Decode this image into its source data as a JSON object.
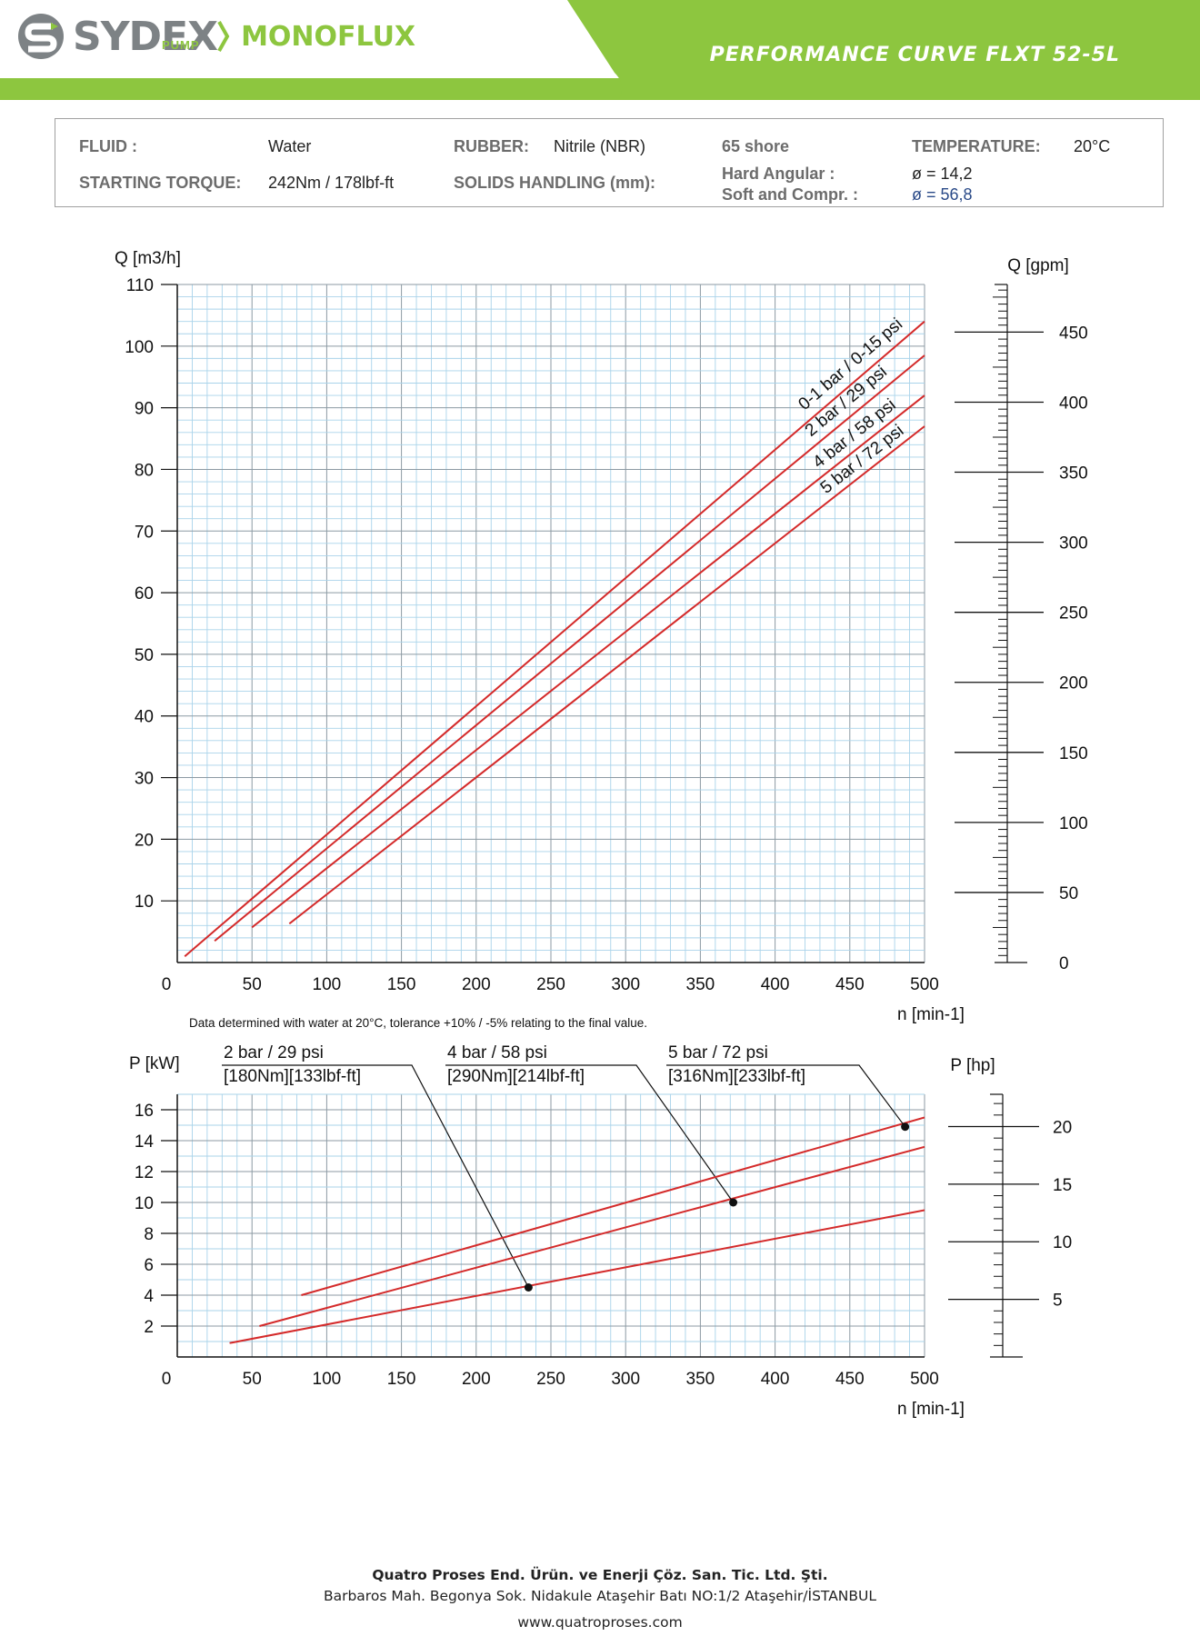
{
  "header": {
    "brand": "SYDEX",
    "brand_sub": "PUMP",
    "product_line": "MONOFLUX",
    "title": "PERFORMANCE CURVE FLXT  52-5L",
    "colors": {
      "green": "#8dc63f",
      "grey": "#7d8285"
    }
  },
  "specs": {
    "fluid_label": "FLUID :",
    "fluid_value": "Water",
    "rubber_label": "RUBBER:",
    "rubber_value": "Nitrile (NBR)",
    "shore": "65 shore",
    "temperature_label": "TEMPERATURE:",
    "temperature_value": "20°C",
    "torque_label": "STARTING TORQUE:",
    "torque_value": "242Nm / 178lbf-ft",
    "solids_label": "SOLIDS HANDLING (mm):",
    "hard_label": "Hard Angular :",
    "hard_value": "ø = 14,2",
    "soft_label": "Soft and Compr. :",
    "soft_value": "ø = 56,8"
  },
  "note": "Data determined with water at 20°C, tolerance +10% / -5% relating to the final value.",
  "chart_data": [
    {
      "type": "line",
      "ylabel": "Q [m3/h]",
      "xlabel": "n [min-1]",
      "secondary_ylabel": "Q [gpm]",
      "xlim": [
        0,
        500
      ],
      "ylim": [
        0,
        110
      ],
      "x_ticks": [
        "0",
        "50",
        "100",
        "150",
        "200",
        "250",
        "300",
        "350",
        "400",
        "450",
        "500"
      ],
      "y_ticks": [
        "10",
        "20",
        "30",
        "40",
        "50",
        "60",
        "70",
        "80",
        "90",
        "100",
        "110"
      ],
      "secondary_ticks": [
        "0",
        "50",
        "100",
        "150",
        "200",
        "250",
        "300",
        "350",
        "400",
        "450"
      ],
      "secondary_ylim": [
        0,
        484
      ],
      "grid": true,
      "line_color": "#d42a2a",
      "series": [
        {
          "name": "0-1 bar / 0-15 psi",
          "x": [
            5,
            500
          ],
          "y": [
            1,
            104
          ]
        },
        {
          "name": "2 bar / 29 psi",
          "x": [
            25,
            500
          ],
          "y": [
            3.5,
            98.5
          ]
        },
        {
          "name": "4 bar / 58 psi",
          "x": [
            50,
            500
          ],
          "y": [
            5.7,
            92
          ]
        },
        {
          "name": "5 bar / 72 psi",
          "x": [
            75,
            500
          ],
          "y": [
            6.3,
            87
          ]
        }
      ]
    },
    {
      "type": "line",
      "ylabel": "P [kW]",
      "xlabel": "n [min-1]",
      "secondary_ylabel": "P [hp]",
      "xlim": [
        0,
        500
      ],
      "ylim": [
        0,
        17
      ],
      "x_ticks": [
        "0",
        "50",
        "100",
        "150",
        "200",
        "250",
        "300",
        "350",
        "400",
        "450",
        "500"
      ],
      "y_ticks": [
        "2",
        "4",
        "6",
        "8",
        "10",
        "12",
        "14",
        "16"
      ],
      "secondary_ticks": [
        "5",
        "10",
        "15",
        "20"
      ],
      "secondary_ylim": [
        0,
        22.8
      ],
      "grid": true,
      "line_color": "#d42a2a",
      "series": [
        {
          "name": "2 bar / 29 psi",
          "torque": "[180Nm][133lbf-ft]",
          "x": [
            35,
            500
          ],
          "y": [
            0.9,
            9.5
          ],
          "marker": [
            235,
            4.5
          ]
        },
        {
          "name": "4 bar / 58 psi",
          "torque": "[290Nm][214lbf-ft]",
          "x": [
            55,
            500
          ],
          "y": [
            2.0,
            13.6
          ],
          "marker": [
            372,
            10.0
          ]
        },
        {
          "name": "5 bar / 72 psi",
          "torque": "[316Nm][233lbf-ft]",
          "x": [
            83,
            500
          ],
          "y": [
            4.0,
            15.5
          ],
          "marker": [
            487,
            14.9
          ]
        }
      ]
    }
  ],
  "footer": {
    "company": "Quatro Proses End. Ürün. ve Enerji Çöz. San. Tic. Ltd. Şti.",
    "address": "Barbaros Mah. Begonya Sok. Nidakule Ataşehir Batı NO:1/2 Ataşehir/İSTANBUL",
    "website": "www.quatroproses.com"
  }
}
